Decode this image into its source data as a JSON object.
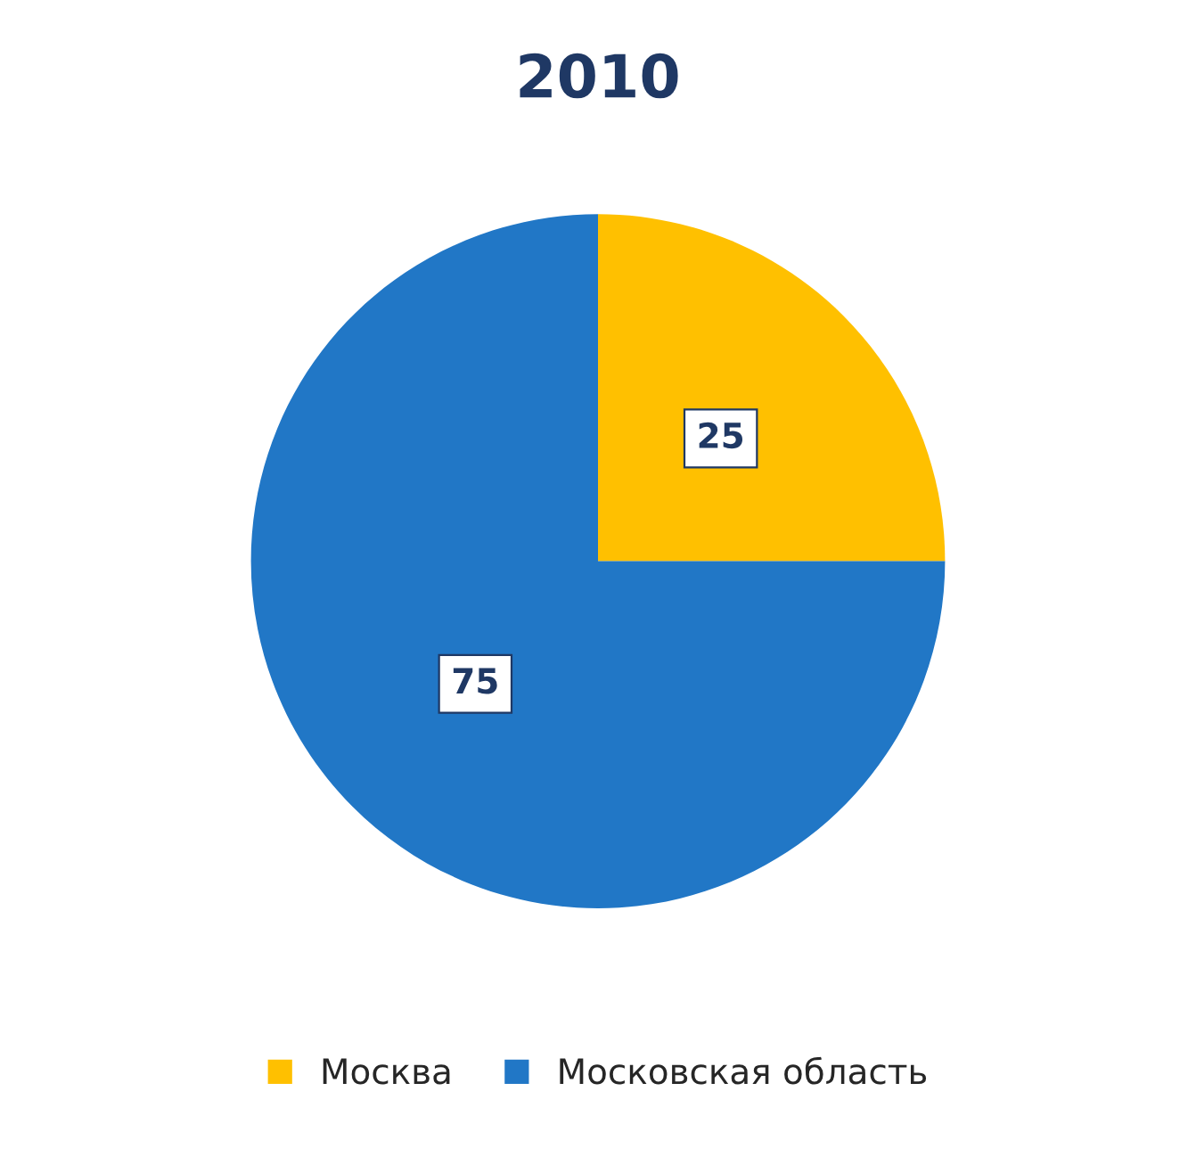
{
  "chart_data": {
    "type": "pie",
    "title": "2010",
    "categories": [
      "Москва",
      "Московская область"
    ],
    "values": [
      25,
      75
    ],
    "colors": [
      "#ffc000",
      "#2177c6"
    ],
    "data_labels": true,
    "legend": "bottom"
  }
}
